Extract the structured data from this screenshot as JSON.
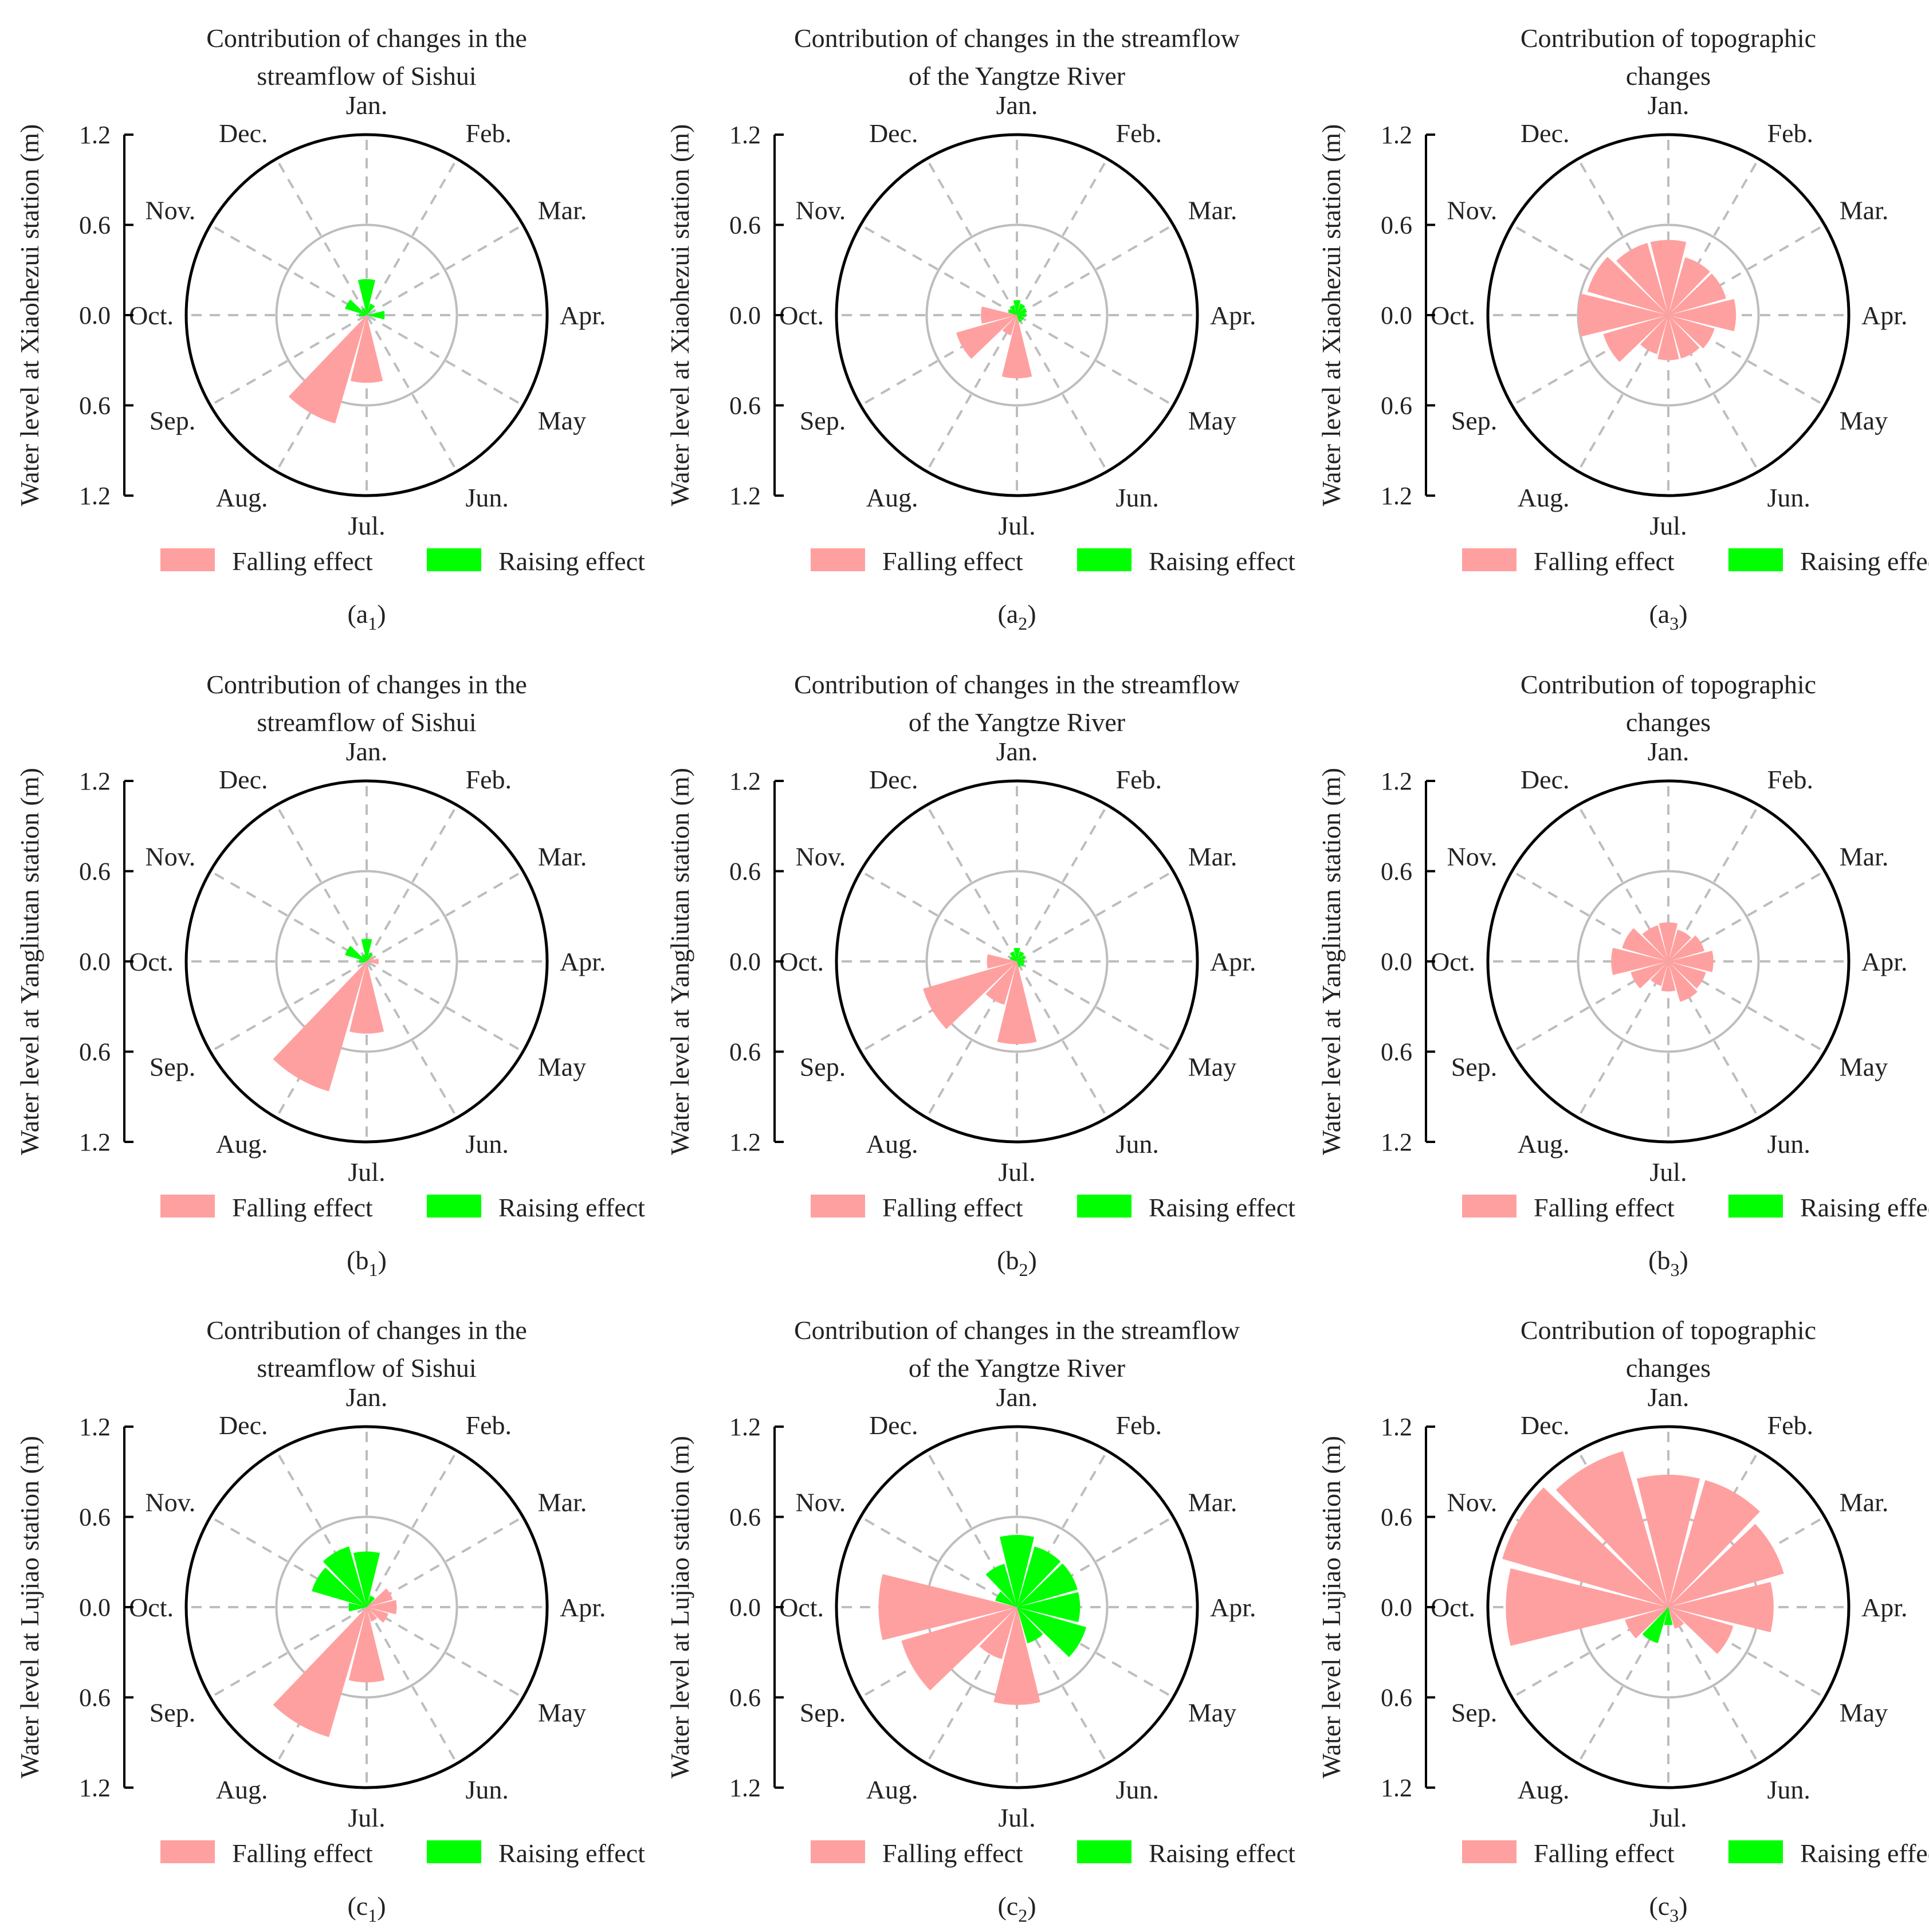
{
  "months": [
    "Jan.",
    "Feb.",
    "Mar.",
    "Apr.",
    "May",
    "Jun.",
    "Jul.",
    "Aug.",
    "Sep.",
    "Oct.",
    "Nov.",
    "Dec."
  ],
  "ticks": [
    "1.2",
    "0.6",
    "0.0",
    "0.6",
    "1.2"
  ],
  "legend": {
    "falling": "Falling effect",
    "raising": "Raising effect"
  },
  "colors": {
    "falling": "#ffa0a0",
    "raising": "#00ff00",
    "axis": "#000000",
    "grid": "#bdbdbd",
    "spoke": "#bdbdbd"
  },
  "chart_data": [
    {
      "type": "polar-bar",
      "title": [
        "Contribution of changes in the",
        "streamflow of Sishui"
      ],
      "ylabel": "Water level at Xiaohezui station (m)",
      "sub_main": "a",
      "sub_idx": "1",
      "rmax": 1.2,
      "falling": [
        0,
        0,
        0,
        0,
        0,
        0,
        0.45,
        0.75,
        0,
        0,
        0,
        0
      ],
      "raising": [
        0.24,
        0.08,
        0,
        0.12,
        0,
        0,
        0,
        0,
        0,
        0.05,
        0.15,
        0.05
      ]
    },
    {
      "type": "polar-bar",
      "title": [
        "Contribution of changes in the streamflow",
        "of the Yangtze River"
      ],
      "ylabel": "Water level at Xiaohezui station (m)",
      "sub_main": "a",
      "sub_idx": "2",
      "rmax": 1.2,
      "falling": [
        0,
        0,
        0,
        0,
        0,
        0,
        0.42,
        0.14,
        0.42,
        0.24,
        0,
        0
      ],
      "raising": [
        0.1,
        0.08,
        0.07,
        0.06,
        0.05,
        0.05,
        0,
        0,
        0,
        0,
        0.06,
        0.07
      ]
    },
    {
      "type": "polar-bar",
      "title": [
        "Contribution of topographic",
        "changes"
      ],
      "ylabel": "Water level at Xiaohezui station (m)",
      "sub_main": "a",
      "sub_idx": "3",
      "rmax": 1.2,
      "falling": [
        0.5,
        0.4,
        0.4,
        0.45,
        0.32,
        0.3,
        0.3,
        0.27,
        0.45,
        0.6,
        0.56,
        0.5
      ],
      "raising": [
        0,
        0,
        0,
        0,
        0,
        0,
        0,
        0,
        0,
        0,
        0,
        0
      ]
    },
    {
      "type": "polar-bar",
      "title": [
        "Contribution of changes in the",
        "streamflow of Sishui"
      ],
      "ylabel": "Water level at Yangliutan station (m)",
      "sub_main": "b",
      "sub_idx": "1",
      "rmax": 1.2,
      "falling": [
        0,
        0,
        0.05,
        0.08,
        0,
        0,
        0.48,
        0.9,
        0,
        0,
        0,
        0
      ],
      "raising": [
        0.15,
        0.06,
        0,
        0,
        0,
        0,
        0,
        0,
        0,
        0.05,
        0.15,
        0.05
      ]
    },
    {
      "type": "polar-bar",
      "title": [
        "Contribution of changes in the streamflow",
        "of the Yangtze River"
      ],
      "ylabel": "Water level at Yangliutan station (m)",
      "sub_main": "b",
      "sub_idx": "2",
      "rmax": 1.2,
      "falling": [
        0,
        0,
        0,
        0,
        0,
        0,
        0.55,
        0.3,
        0.65,
        0.2,
        0,
        0
      ],
      "raising": [
        0.09,
        0.07,
        0.06,
        0.05,
        0.05,
        0.04,
        0,
        0,
        0,
        0,
        0.05,
        0.07
      ]
    },
    {
      "type": "polar-bar",
      "title": [
        "Contribution of topographic",
        "changes"
      ],
      "ylabel": "Water level at Yangliutan station (m)",
      "sub_main": "b",
      "sub_idx": "3",
      "rmax": 1.2,
      "falling": [
        0.26,
        0.22,
        0.25,
        0.3,
        0.26,
        0.28,
        0.2,
        0.17,
        0.26,
        0.38,
        0.32,
        0.25
      ],
      "raising": [
        0,
        0,
        0,
        0,
        0,
        0,
        0,
        0,
        0,
        0,
        0,
        0
      ]
    },
    {
      "type": "polar-bar",
      "title": [
        "Contribution of changes in the",
        "streamflow of Sishui"
      ],
      "ylabel": "Water level at Lujiao station (m)",
      "sub_main": "c",
      "sub_idx": "1",
      "rmax": 1.2,
      "falling": [
        0,
        0,
        0.18,
        0.2,
        0.15,
        0.1,
        0.5,
        0.9,
        0,
        0,
        0,
        0
      ],
      "raising": [
        0.37,
        0.08,
        0,
        0,
        0,
        0,
        0,
        0,
        0,
        0.12,
        0.38,
        0.42
      ]
    },
    {
      "type": "polar-bar",
      "title": [
        "Contribution of changes in the streamflow",
        "of the Yangtze River"
      ],
      "ylabel": "Water level at Lujiao station (m)",
      "sub_main": "c",
      "sub_idx": "2",
      "rmax": 1.2,
      "falling": [
        0,
        0,
        0,
        0,
        0,
        0,
        0.65,
        0.36,
        0.8,
        0.92,
        0,
        0
      ],
      "raising": [
        0.48,
        0.42,
        0.42,
        0.42,
        0.48,
        0.25,
        0,
        0,
        0,
        0,
        0.15,
        0.3
      ]
    },
    {
      "type": "polar-bar",
      "title": [
        "Contribution of topographic",
        "changes"
      ],
      "ylabel": "Water level at Lujiao station (m)",
      "sub_main": "c",
      "sub_idx": "3",
      "rmax": 1.2,
      "falling": [
        0.88,
        0.88,
        0.8,
        0.7,
        0.45,
        0.15,
        0,
        0,
        0.3,
        1.08,
        1.15,
        1.08
      ],
      "raising": [
        0,
        0,
        0,
        0,
        0,
        0,
        0.12,
        0.25,
        0,
        0,
        0,
        0
      ]
    }
  ]
}
